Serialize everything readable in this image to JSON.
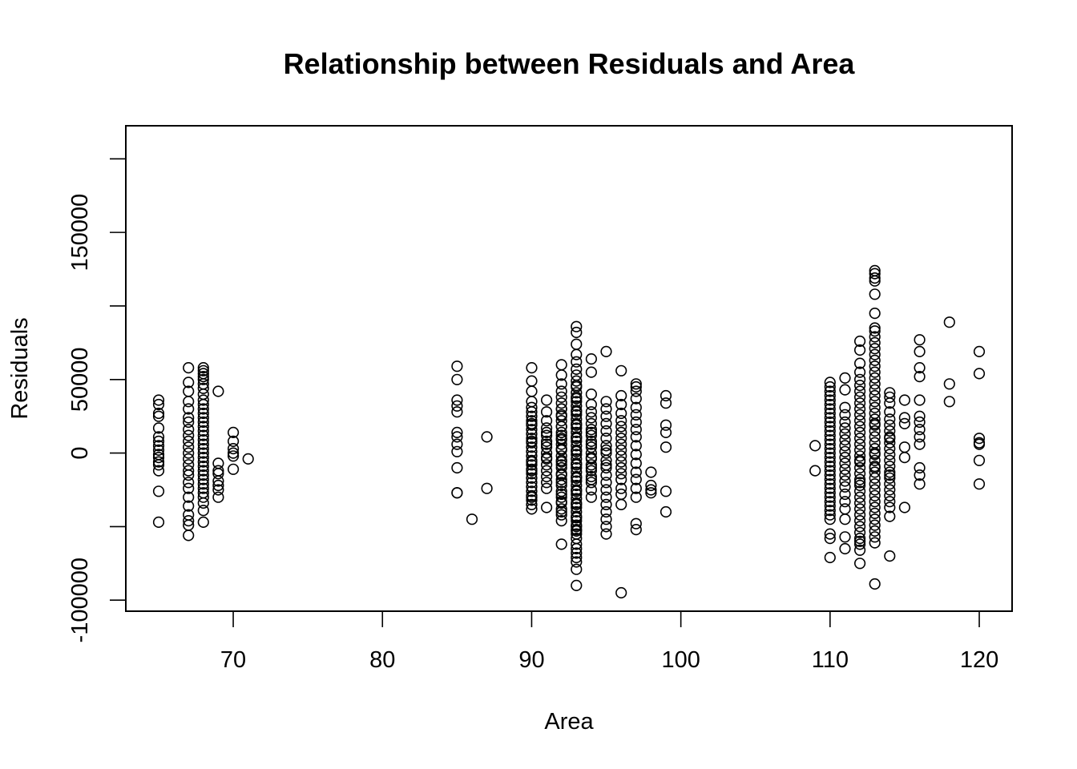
{
  "chart_data": {
    "type": "scatter",
    "title": "Relationship between Residuals and Area",
    "xlabel": "Area",
    "ylabel": "Residuals",
    "xlim": [
      62.8,
      122.2
    ],
    "ylim": [
      -107500,
      222500
    ],
    "xticks": [
      70,
      80,
      90,
      100,
      110,
      120
    ],
    "yticks": [
      -100000,
      -50000,
      0,
      50000,
      100000,
      150000,
      200000
    ],
    "ytick_labels": [
      "-100000",
      "",
      "0",
      "50000",
      "",
      "150000",
      ""
    ],
    "grid": false,
    "legend": "none",
    "marker": "open-circle",
    "x": [
      65,
      65,
      65,
      65,
      65,
      65,
      65,
      65,
      65,
      65,
      65,
      65,
      65,
      65,
      65,
      65,
      67,
      67,
      67,
      67,
      67,
      67,
      67,
      67,
      67,
      67,
      67,
      67,
      67,
      67,
      67,
      67,
      67,
      67,
      67,
      67,
      67,
      67,
      67,
      67,
      68,
      68,
      68,
      68,
      68,
      68,
      68,
      68,
      68,
      68,
      68,
      68,
      68,
      68,
      68,
      68,
      68,
      68,
      68,
      68,
      68,
      68,
      68,
      68,
      68,
      68,
      68,
      68,
      68,
      68,
      68,
      68,
      68,
      68,
      69,
      69,
      69,
      69,
      69,
      69,
      69,
      69,
      70,
      70,
      70,
      70,
      70,
      70,
      71,
      85,
      85,
      85,
      85,
      85,
      85,
      85,
      85,
      85,
      85,
      85,
      85,
      86,
      87,
      87,
      90,
      90,
      90,
      90,
      90,
      90,
      90,
      90,
      90,
      90,
      90,
      90,
      90,
      90,
      90,
      90,
      90,
      90,
      90,
      90,
      90,
      90,
      90,
      90,
      90,
      90,
      90,
      90,
      90,
      90,
      90,
      90,
      90,
      91,
      91,
      91,
      91,
      91,
      91,
      91,
      91,
      91,
      91,
      91,
      91,
      91,
      91,
      91,
      91,
      91,
      91,
      92,
      92,
      92,
      92,
      92,
      92,
      92,
      92,
      92,
      92,
      92,
      92,
      92,
      92,
      92,
      92,
      92,
      92,
      92,
      92,
      92,
      92,
      92,
      92,
      92,
      92,
      92,
      92,
      92,
      92,
      92,
      92,
      92,
      92,
      92,
      92,
      92,
      92,
      92,
      92,
      93,
      93,
      93,
      93,
      93,
      93,
      93,
      93,
      93,
      93,
      93,
      93,
      93,
      93,
      93,
      93,
      93,
      93,
      93,
      93,
      93,
      93,
      93,
      93,
      93,
      93,
      93,
      93,
      93,
      93,
      93,
      93,
      93,
      93,
      93,
      93,
      93,
      93,
      93,
      93,
      93,
      93,
      93,
      93,
      93,
      93,
      93,
      93,
      93,
      93,
      93,
      93,
      93,
      93,
      93,
      93,
      93,
      93,
      93,
      93,
      93,
      93,
      93,
      94,
      94,
      94,
      94,
      94,
      94,
      94,
      94,
      94,
      94,
      94,
      94,
      94,
      94,
      94,
      94,
      94,
      94,
      94,
      94,
      94,
      94,
      94,
      94,
      95,
      95,
      95,
      95,
      95,
      95,
      95,
      95,
      95,
      95,
      95,
      95,
      95,
      95,
      95,
      95,
      95,
      95,
      95,
      95,
      95,
      95,
      96,
      96,
      96,
      96,
      96,
      96,
      96,
      96,
      96,
      96,
      96,
      96,
      96,
      96,
      96,
      96,
      96,
      96,
      96,
      97,
      97,
      97,
      97,
      97,
      97,
      97,
      97,
      97,
      97,
      97,
      97,
      97,
      97,
      97,
      97,
      97,
      97,
      98,
      98,
      98,
      98,
      99,
      99,
      99,
      99,
      99,
      99,
      99,
      109,
      109,
      110,
      110,
      110,
      110,
      110,
      110,
      110,
      110,
      110,
      110,
      110,
      110,
      110,
      110,
      110,
      110,
      110,
      110,
      110,
      110,
      110,
      110,
      110,
      110,
      110,
      110,
      110,
      110,
      110,
      110,
      110,
      110,
      110,
      110,
      110,
      111,
      111,
      111,
      111,
      111,
      111,
      111,
      111,
      111,
      111,
      111,
      111,
      111,
      111,
      111,
      111,
      111,
      111,
      111,
      111,
      111,
      111,
      112,
      112,
      112,
      112,
      112,
      112,
      112,
      112,
      112,
      112,
      112,
      112,
      112,
      112,
      112,
      112,
      112,
      112,
      112,
      112,
      112,
      112,
      112,
      112,
      112,
      112,
      112,
      112,
      112,
      112,
      112,
      112,
      112,
      112,
      112,
      112,
      112,
      112,
      113,
      113,
      113,
      113,
      113,
      113,
      113,
      113,
      113,
      113,
      113,
      113,
      113,
      113,
      113,
      113,
      113,
      113,
      113,
      113,
      113,
      113,
      113,
      113,
      113,
      113,
      113,
      113,
      113,
      113,
      113,
      113,
      113,
      113,
      113,
      113,
      113,
      113,
      113,
      113,
      113,
      113,
      113,
      113,
      113,
      113,
      113,
      113,
      114,
      114,
      114,
      114,
      114,
      114,
      114,
      114,
      114,
      114,
      114,
      114,
      114,
      114,
      114,
      114,
      114,
      114,
      114,
      114,
      114,
      114,
      114,
      114,
      115,
      115,
      115,
      115,
      115,
      115,
      116,
      116,
      116,
      116,
      116,
      116,
      116,
      116,
      116,
      116,
      116,
      116,
      116,
      118,
      118,
      118,
      120,
      120,
      120,
      120,
      120,
      120,
      120
    ],
    "y": [
      36000,
      33000,
      27000,
      25000,
      17000,
      11000,
      8000,
      5000,
      2000,
      -1000,
      -3000,
      -6000,
      -8000,
      -12000,
      -26000,
      -47000,
      58000,
      48000,
      42000,
      35000,
      30000,
      24000,
      21000,
      16000,
      12000,
      8000,
      4000,
      0,
      -4000,
      -8000,
      -12000,
      -15000,
      -20000,
      -24000,
      -30000,
      -36000,
      -42000,
      -46000,
      -49000,
      -56000,
      58000,
      56000,
      54000,
      52000,
      50000,
      47000,
      44000,
      40000,
      36000,
      33000,
      30000,
      27000,
      24000,
      21000,
      18000,
      15000,
      12000,
      9000,
      6000,
      3000,
      0,
      -3000,
      -6000,
      -9000,
      -12000,
      -15000,
      -18000,
      -21000,
      -24000,
      -27000,
      -30000,
      -34000,
      -39000,
      -47000,
      42000,
      -7000,
      -12000,
      -14000,
      -19000,
      -22000,
      -25000,
      -30000,
      14000,
      8000,
      3000,
      0,
      -2000,
      -11000,
      -4000,
      59000,
      50000,
      36000,
      32000,
      28000,
      14000,
      11000,
      6000,
      1000,
      -10000,
      -27000,
      -27000,
      -45000,
      11000,
      -24000,
      58000,
      49000,
      42000,
      35000,
      31000,
      28000,
      25000,
      22000,
      19000,
      16000,
      13000,
      10000,
      7000,
      4000,
      1000,
      -2000,
      -5000,
      -8000,
      -11000,
      -14000,
      -17000,
      -20000,
      -23000,
      -26000,
      -29000,
      -32000,
      -35000,
      -38000,
      -12000,
      -6000,
      8000,
      20000,
      -30000,
      36000,
      28000,
      22000,
      17000,
      12000,
      8000,
      4000,
      0,
      -4000,
      -8000,
      -12000,
      -16000,
      -20000,
      -24000,
      -37000,
      6000,
      -3000,
      14000,
      60000,
      53000,
      47000,
      42000,
      38000,
      34000,
      30000,
      26000,
      22000,
      18000,
      14000,
      10000,
      6000,
      2000,
      -2000,
      -6000,
      -10000,
      -14000,
      -18000,
      -22000,
      -26000,
      -30000,
      -34000,
      -38000,
      -42000,
      -46000,
      -62000,
      9000,
      -8000,
      25000,
      -15000,
      3000,
      -28000,
      12000,
      -40000,
      18000,
      -5000,
      -20000,
      30000,
      -33000,
      86000,
      82000,
      74000,
      67000,
      62000,
      57000,
      53000,
      49000,
      45000,
      41000,
      38000,
      35000,
      32000,
      29000,
      26000,
      23000,
      20000,
      17000,
      14000,
      11000,
      8000,
      5000,
      2000,
      -1000,
      -4000,
      -7000,
      -10000,
      -13000,
      -16000,
      -19000,
      -22000,
      -25000,
      -28000,
      -31000,
      -34000,
      -37000,
      -40000,
      -43000,
      -46000,
      -49000,
      -52000,
      -55000,
      -58000,
      -62000,
      -68000,
      -74000,
      -79000,
      -90000,
      -50000,
      -44000,
      -35000,
      -26000,
      -17000,
      -8000,
      1000,
      10000,
      19000,
      28000,
      37000,
      46000,
      -53000,
      -65000,
      -71000,
      64000,
      55000,
      40000,
      33000,
      28000,
      24000,
      20000,
      16000,
      12000,
      8000,
      4000,
      0,
      -4000,
      -8000,
      -12000,
      -16000,
      -20000,
      -25000,
      -30000,
      -3000,
      6000,
      -10000,
      14000,
      -18000,
      69000,
      35000,
      30000,
      25000,
      20000,
      15000,
      10000,
      5000,
      0,
      -5000,
      -10000,
      -15000,
      -20000,
      -25000,
      -30000,
      -35000,
      -40000,
      -45000,
      -50000,
      -55000,
      2000,
      -8000,
      56000,
      39000,
      33000,
      27000,
      22000,
      18000,
      14000,
      10000,
      6000,
      2000,
      -2000,
      -6000,
      -10000,
      -14000,
      -18000,
      -24000,
      -28000,
      -35000,
      -95000,
      47000,
      45000,
      42000,
      37000,
      31000,
      26000,
      21000,
      16000,
      11000,
      5000,
      -1000,
      -7000,
      -13000,
      -18000,
      -24000,
      -30000,
      -48000,
      -52000,
      -13000,
      -22000,
      -25000,
      -27000,
      39000,
      34000,
      19000,
      14000,
      4000,
      -26000,
      -40000,
      5000,
      -12000,
      48000,
      45000,
      42000,
      39000,
      36000,
      33000,
      30000,
      27000,
      24000,
      21000,
      18000,
      15000,
      12000,
      9000,
      6000,
      3000,
      0,
      -3000,
      -6000,
      -9000,
      -12000,
      -15000,
      -18000,
      -21000,
      -24000,
      -27000,
      -30000,
      -33000,
      -36000,
      -39000,
      -42000,
      -45000,
      -55000,
      -58000,
      -71000,
      51000,
      43000,
      31000,
      26000,
      21000,
      17000,
      13000,
      9000,
      5000,
      1000,
      -3000,
      -7000,
      -11000,
      -15000,
      -19000,
      -23000,
      -28000,
      -33000,
      -38000,
      -45000,
      -57000,
      -65000,
      76000,
      70000,
      61000,
      55000,
      50000,
      46000,
      42000,
      38000,
      34000,
      30000,
      26000,
      22000,
      18000,
      14000,
      10000,
      6000,
      2000,
      -2000,
      -6000,
      -10000,
      -14000,
      -18000,
      -22000,
      -26000,
      -30000,
      -34000,
      -38000,
      -42000,
      -46000,
      -50000,
      -54000,
      -58000,
      -60000,
      -62000,
      -66000,
      -75000,
      -5000,
      -20000,
      124000,
      122000,
      119000,
      117000,
      108000,
      95000,
      85000,
      83000,
      79000,
      75000,
      71000,
      67000,
      63000,
      59000,
      55000,
      51000,
      47000,
      43000,
      39000,
      35000,
      31000,
      27000,
      23000,
      19000,
      15000,
      11000,
      7000,
      3000,
      -1000,
      -5000,
      -9000,
      -13000,
      -17000,
      -21000,
      -25000,
      -29000,
      -33000,
      -37000,
      -41000,
      -45000,
      -49000,
      -53000,
      -57000,
      -61000,
      -89000,
      -10000,
      20000,
      0,
      41000,
      38000,
      34000,
      28000,
      23000,
      19000,
      15000,
      11000,
      7000,
      3000,
      -1000,
      -5000,
      -9000,
      -13000,
      -17000,
      -21000,
      -25000,
      -29000,
      -33000,
      -37000,
      -43000,
      -70000,
      -15000,
      10000,
      36000,
      24000,
      4000,
      -3000,
      -37000,
      20000,
      77000,
      69000,
      58000,
      52000,
      36000,
      25000,
      21000,
      16000,
      6000,
      -10000,
      -21000,
      11000,
      -15000,
      89000,
      47000,
      35000,
      69000,
      54000,
      10000,
      7000,
      6000,
      -5000,
      -21000
    ]
  }
}
